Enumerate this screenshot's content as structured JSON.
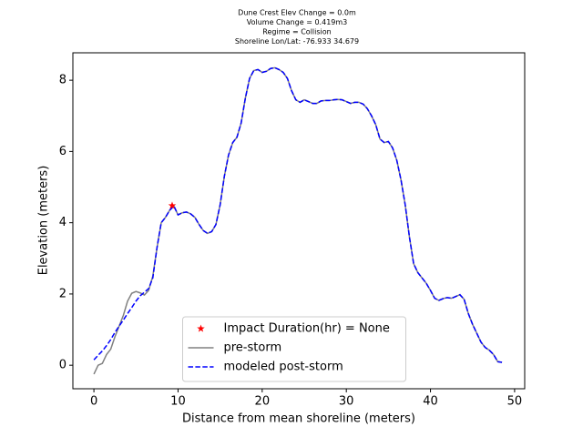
{
  "chart_data": {
    "type": "line",
    "title": [
      "Dune Crest Elev Change = 0.0m",
      "Volume Change = 0.419m3",
      "Regime = Collision",
      "Shoreline Lon/Lat: -76.933 34.679"
    ],
    "x_label": "Distance from mean shoreline (meters)",
    "y_label": "Elevation (meters)",
    "xlim": [
      -2.5,
      51.2
    ],
    "ylim": [
      -0.66,
      8.77
    ],
    "xticks": [
      0,
      10,
      20,
      30,
      40,
      50
    ],
    "yticks": [
      0,
      2,
      4,
      6,
      8
    ],
    "grid": false,
    "legend": "lower center",
    "x": [
      0,
      0.5,
      1,
      1.5,
      2,
      2.5,
      3,
      3.5,
      4,
      4.5,
      5,
      5.5,
      6,
      6.5,
      7,
      7.5,
      8,
      8.5,
      9,
      9.5,
      10,
      10.5,
      11,
      11.5,
      12,
      12.5,
      13,
      13.5,
      14,
      14.5,
      15,
      15.5,
      16,
      16.5,
      17,
      17.5,
      18,
      18.5,
      19,
      19.5,
      20,
      20.5,
      21,
      21.5,
      22,
      22.5,
      23,
      23.5,
      24,
      24.5,
      25,
      25.5,
      26,
      26.5,
      27,
      27.5,
      28,
      28.5,
      29,
      29.5,
      30,
      30.5,
      31,
      31.5,
      32,
      32.5,
      33,
      33.5,
      34,
      34.5,
      35,
      35.5,
      36,
      36.5,
      37,
      37.5,
      38,
      38.5,
      39,
      39.5,
      40,
      40.5,
      41,
      41.5,
      42,
      42.5,
      43,
      43.5,
      44,
      44.5,
      45,
      45.5,
      46,
      46.5,
      47,
      47.5,
      48,
      48.5
    ],
    "markers": [
      {
        "name": "Impact Duration(hr) = None",
        "color": "#ff0000",
        "marker": "star",
        "x": 9.3,
        "y": 4.48
      }
    ],
    "series": [
      {
        "name": "pre-storm",
        "color": "#808080",
        "linestyle": "solid",
        "values": [
          -0.25,
          0.0,
          0.05,
          0.3,
          0.45,
          0.8,
          1.1,
          1.4,
          1.8,
          2.02,
          2.07,
          2.03,
          1.97,
          2.1,
          2.5,
          3.3,
          4.0,
          4.15,
          4.35,
          4.47,
          4.22,
          4.28,
          4.3,
          4.25,
          4.15,
          3.95,
          3.78,
          3.7,
          3.75,
          3.95,
          4.5,
          5.3,
          5.9,
          6.25,
          6.4,
          6.8,
          7.5,
          8.05,
          8.27,
          8.3,
          8.22,
          8.25,
          8.33,
          8.35,
          8.3,
          8.22,
          8.05,
          7.7,
          7.45,
          7.38,
          7.45,
          7.4,
          7.35,
          7.35,
          7.42,
          7.43,
          7.43,
          7.45,
          7.46,
          7.45,
          7.4,
          7.35,
          7.38,
          7.38,
          7.33,
          7.2,
          7.0,
          6.75,
          6.35,
          6.25,
          6.28,
          6.1,
          5.75,
          5.2,
          4.5,
          3.6,
          2.85,
          2.6,
          2.45,
          2.3,
          2.1,
          1.88,
          1.82,
          1.87,
          1.9,
          1.88,
          1.93,
          1.98,
          1.85,
          1.45,
          1.15,
          0.9,
          0.65,
          0.5,
          0.42,
          0.3,
          0.1,
          0.08
        ]
      },
      {
        "name": "modeled post-storm",
        "color": "#0000ff",
        "linestyle": "dashed",
        "values": [
          0.15,
          0.28,
          0.4,
          0.55,
          0.72,
          0.92,
          1.1,
          1.27,
          1.45,
          1.62,
          1.8,
          1.95,
          2.05,
          2.15,
          2.45,
          3.3,
          4.0,
          4.15,
          4.35,
          4.47,
          4.22,
          4.28,
          4.3,
          4.25,
          4.15,
          3.95,
          3.78,
          3.7,
          3.75,
          3.95,
          4.5,
          5.3,
          5.9,
          6.25,
          6.4,
          6.8,
          7.5,
          8.05,
          8.27,
          8.3,
          8.22,
          8.25,
          8.33,
          8.35,
          8.3,
          8.22,
          8.05,
          7.7,
          7.45,
          7.38,
          7.45,
          7.4,
          7.35,
          7.35,
          7.42,
          7.43,
          7.43,
          7.45,
          7.46,
          7.45,
          7.4,
          7.35,
          7.38,
          7.38,
          7.33,
          7.2,
          7.0,
          6.75,
          6.35,
          6.25,
          6.28,
          6.1,
          5.75,
          5.2,
          4.5,
          3.6,
          2.85,
          2.6,
          2.45,
          2.3,
          2.1,
          1.88,
          1.82,
          1.87,
          1.9,
          1.88,
          1.93,
          1.98,
          1.85,
          1.45,
          1.15,
          0.9,
          0.65,
          0.5,
          0.42,
          0.3,
          0.1,
          0.08
        ]
      }
    ]
  }
}
